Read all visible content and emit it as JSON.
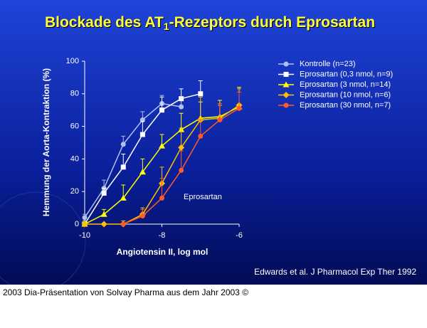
{
  "chart_data": {
    "type": "line",
    "title": {
      "main": "Blockade des AT",
      "sub": "1",
      "rest": "-Rezeptors durch Eprosartan"
    },
    "x_label": "Angiotensin II, log mol",
    "y_label": "Hemmung der Aorta-Kontraktion (%)",
    "xlim": [
      -10,
      -6
    ],
    "xticks": [
      -10,
      -8,
      -6
    ],
    "ylim": [
      0,
      100
    ],
    "yticks": [
      0,
      20,
      40,
      60,
      80,
      100
    ],
    "annotation": "Eprosartan",
    "citation": "Edwards et al. J Pharmacol Exp Ther 1992",
    "series": [
      {
        "name": "Kontrolle (n=23)",
        "color": "#b0c0ee",
        "marker": "circle",
        "x": [
          -10,
          -9.5,
          -9,
          -8.5,
          -8,
          -7.5
        ],
        "values": [
          4,
          22,
          49,
          64,
          74,
          72
        ],
        "errors": [
          2,
          5,
          5,
          5,
          5,
          4
        ]
      },
      {
        "name": "Eprosartan (0,3 nmol, n=9)",
        "color": "#ffffff",
        "marker": "square",
        "x": [
          -10,
          -9.5,
          -9,
          -8.5,
          -8,
          -7.5,
          -7
        ],
        "values": [
          0,
          19,
          35,
          55,
          70,
          77,
          80
        ],
        "errors": [
          0,
          3,
          8,
          8,
          8,
          6,
          8
        ]
      },
      {
        "name": "Eprosartan (3 nmol, n=14)",
        "color": "#ffff00",
        "marker": "triangle",
        "x": [
          -10,
          -9.5,
          -9,
          -8.5,
          -8,
          -7.5,
          -7,
          -6.5,
          -6
        ],
        "values": [
          0,
          6,
          16,
          32,
          48,
          58,
          65,
          66,
          72
        ],
        "errors": [
          2,
          3,
          8,
          8,
          7,
          10,
          10,
          10,
          12
        ]
      },
      {
        "name": "Eprosartan (10 nmol, n=6)",
        "color": "#ffc000",
        "marker": "diamond",
        "x": [
          -10,
          -9.5,
          -9,
          -8.5,
          -8,
          -7.5,
          -7,
          -6.5,
          -6
        ],
        "values": [
          0,
          0,
          0,
          6,
          25,
          47,
          64,
          65,
          73
        ],
        "errors": [
          0,
          0,
          2,
          4,
          10,
          12,
          14,
          8,
          10
        ]
      },
      {
        "name": "Eprosartan (30 nmol, n=7)",
        "color": "#ff5a28",
        "marker": "circle",
        "x": [
          -9,
          -8.5,
          -8,
          -7.5,
          -7,
          -6.5,
          -6
        ],
        "values": [
          0,
          5,
          16,
          33,
          54,
          64,
          71
        ],
        "errors": [
          0,
          4,
          12,
          12,
          10,
          10,
          10
        ]
      }
    ]
  },
  "footer": "2003 Dia-Präsentation von Solvay Pharma aus dem Jahr 2003 ©"
}
